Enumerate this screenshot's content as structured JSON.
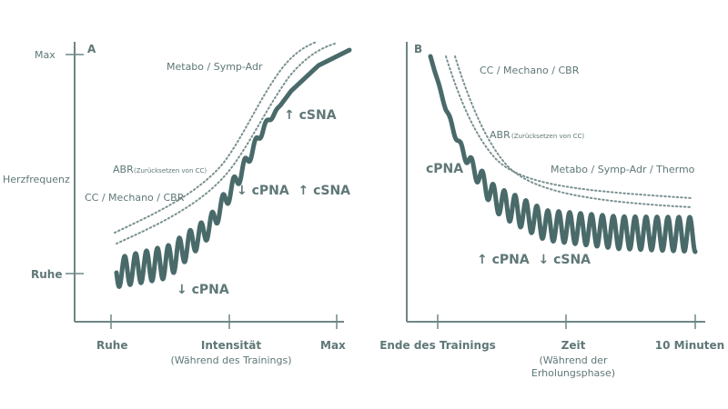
{
  "colors": {
    "ink": "#4a6a6a",
    "text": "#5f7777",
    "dots": "#7a9090",
    "axis": "#6f8585"
  },
  "panel_a": {
    "letter": "A",
    "y_axis": {
      "max": "Max",
      "label": "Herzfrequenz",
      "rest": "Ruhe"
    },
    "x_axis": {
      "rest": "Ruhe",
      "title": "Intensität",
      "subtitle": "(Während des Trainings)",
      "max": "Max"
    },
    "labels": {
      "metabo": "Metabo / Symp-Adr",
      "csna_up": "↑ cSNA",
      "abr": "ABR",
      "abr_note": "(Zurücksetzen von CC)",
      "cc": "CC / Mechano / CBR",
      "mid": "↓ cPNA  ↑ cSNA",
      "cpna_down": "↓ cPNA"
    }
  },
  "panel_b": {
    "letter": "B",
    "x_axis": {
      "start": "Ende des Trainings",
      "title": "Zeit",
      "subtitle1": "(Während der",
      "subtitle2": "Erholungsphase)",
      "end": "10 Minuten"
    },
    "labels": {
      "cc": "CC / Mechano / CBR",
      "abr": "ABR",
      "abr_note": "(Zurücksetzen von CC)",
      "cpna": "cPNA",
      "metabo": "Metabo / Symp-Adr / Thermo",
      "bottom": "↑ cPNA  ↓ cSNA"
    }
  }
}
